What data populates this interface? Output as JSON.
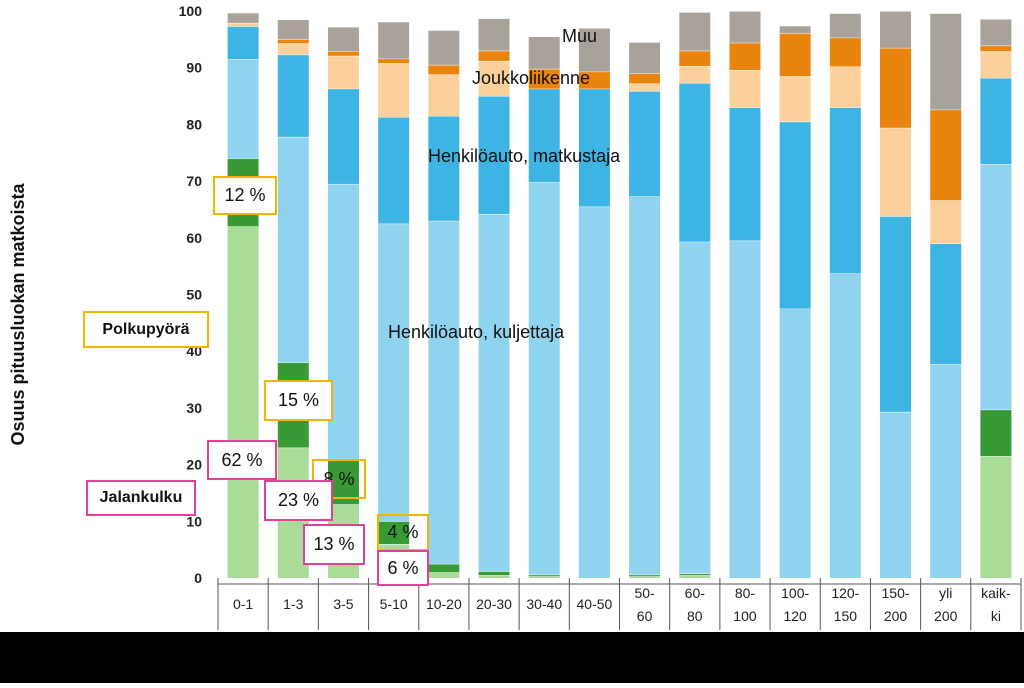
{
  "chart_data": {
    "type": "bar",
    "stacked": true,
    "ylabel": "Osuus pituusluokan matkoista",
    "ylim": [
      0,
      100
    ],
    "yticks": [
      "0",
      "10",
      "20",
      "30",
      "40",
      "50",
      "60",
      "70",
      "80",
      "90",
      "100"
    ],
    "categories": [
      {
        "line1": "0-1",
        "line2": ""
      },
      {
        "line1": "1-3",
        "line2": ""
      },
      {
        "line1": "3-5",
        "line2": ""
      },
      {
        "line1": "5-10",
        "line2": ""
      },
      {
        "line1": "10-20",
        "line2": ""
      },
      {
        "line1": "20-30",
        "line2": ""
      },
      {
        "line1": "30-40",
        "line2": ""
      },
      {
        "line1": "40-50",
        "line2": ""
      },
      {
        "line1": "50-",
        "line2": "60"
      },
      {
        "line1": "60-",
        "line2": "80"
      },
      {
        "line1": "80-",
        "line2": "100"
      },
      {
        "line1": "100-",
        "line2": "120"
      },
      {
        "line1": "120-",
        "line2": "150"
      },
      {
        "line1": "150-",
        "line2": "200"
      },
      {
        "line1": "yli",
        "line2": "200"
      },
      {
        "line1": "kaik-",
        "line2": "ki"
      }
    ],
    "series": [
      {
        "name": "Jalankulku",
        "color": "#a8dc98",
        "values": [
          62,
          23,
          13,
          6,
          1,
          0.5,
          0.3,
          0,
          0.3,
          0.5,
          0,
          0,
          0,
          0,
          0,
          21.5
        ]
      },
      {
        "name": "Polkupyörä",
        "color": "#379a34",
        "values": [
          12,
          15,
          8,
          4,
          1.5,
          0.7,
          0.3,
          0,
          0.3,
          0.3,
          0,
          0,
          0,
          0,
          0,
          8.2
        ]
      },
      {
        "name": "Henkilöauto, kuljettaja",
        "color": "#8fd3ef",
        "values": [
          17.5,
          39.8,
          48.5,
          52.5,
          60.5,
          63,
          69.2,
          65.5,
          66.7,
          58.5,
          59.5,
          47.5,
          53.7,
          29.3,
          37.7,
          43.3
        ]
      },
      {
        "name": "Henkilöauto, matkustaja",
        "color": "#3db4e3",
        "values": [
          5.8,
          14.5,
          16.8,
          18.8,
          18.5,
          20.8,
          16.5,
          20.8,
          18.6,
          28,
          23.5,
          33,
          29.3,
          34.5,
          21.3,
          15.2
        ]
      },
      {
        "name": "Joukkoliikenne",
        "color": "#fcd09a",
        "values": [
          0.6,
          2,
          5.8,
          9.5,
          7.3,
          6.2,
          0,
          0,
          1.3,
          3,
          6.6,
          8,
          7.2,
          15.6,
          7.6,
          4.7
        ]
      },
      {
        "name": "",
        "color": "#e8830d",
        "values": [
          0,
          0.7,
          0.8,
          0.8,
          1.7,
          1.8,
          3.5,
          3,
          1.8,
          2.7,
          4.8,
          7.6,
          5.1,
          14.1,
          16,
          1
        ]
      },
      {
        "name": "Muu",
        "color": "#a9a29b",
        "values": [
          1.8,
          3.5,
          4.3,
          6.5,
          6.1,
          5.7,
          5.7,
          7.7,
          5.5,
          6.8,
          5.6,
          1.3,
          4.3,
          6.5,
          17,
          4.7
        ]
      }
    ],
    "series_labels": [
      "Muu",
      "Joukkoliikenne",
      "Henkilöauto, matkustaja",
      "Henkilöauto, kuljettaja"
    ],
    "callouts": {
      "polkupyora_legend": "Polkupyörä",
      "jalankulku_legend": "Jalankulku",
      "pct_0_1_cycle": "12 %",
      "pct_1_3_cycle": "15 %",
      "pct_3_5_cycle": "8 %",
      "pct_5_10_cycle": "4 %",
      "pct_0_1_walk": "62 %",
      "pct_1_3_walk": "23 %",
      "pct_3_5_walk": "13 %",
      "pct_5_10_walk": "6 %"
    },
    "colors": {
      "cycle_box": "#f5b400",
      "walk_box": "#e0409a",
      "grid": "#d8d8d8",
      "frame": "#555555"
    }
  }
}
